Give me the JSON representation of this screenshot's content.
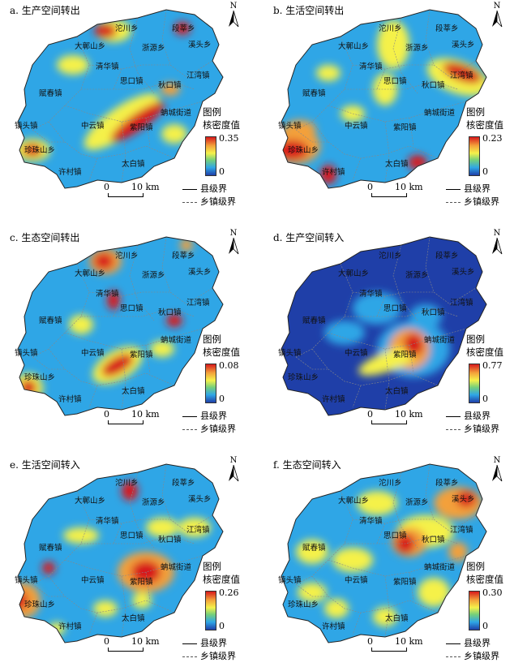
{
  "legend": {
    "title_line1": "图例",
    "title_line2": "核密度值",
    "min": "0",
    "county_boundary": "县级界",
    "town_boundary": "乡镇级界",
    "scale": {
      "zero": "0",
      "distance": "10 km"
    }
  },
  "north_label": "N",
  "towns": [
    "沱川乡",
    "段莘乡",
    "大鄣山乡",
    "浙源乡",
    "溪头乡",
    "清华镇",
    "思口镇",
    "江湾镇",
    "赋春镇",
    "秋口镇",
    "蚺城街道",
    "中云镇",
    "紫阳镇",
    "镇头镇",
    "珍珠山乡",
    "许村镇",
    "太白镇"
  ],
  "colors": {
    "low": "#1f3fa8",
    "mid_low": "#2fa6e6",
    "mid": "#f5f14a",
    "mid_high": "#f3a03a",
    "high": "#d7191c"
  },
  "panels": [
    {
      "title": "a. 生产空间转出",
      "max": "0.35"
    },
    {
      "title": "b. 生活空间转出",
      "max": "0.23"
    },
    {
      "title": "c. 生态空间转出",
      "max": "0.08"
    },
    {
      "title": "d. 生产空间转入",
      "max": "0.77"
    },
    {
      "title": "e. 生活空间转入",
      "max": "0.26"
    },
    {
      "title": "f. 生态空间转入",
      "max": "0.30"
    }
  ]
}
